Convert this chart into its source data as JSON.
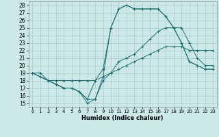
{
  "background_color": "#cce8e8",
  "grid_color": "#aacccc",
  "line_color": "#1a7070",
  "xlabel": "Humidex (Indice chaleur)",
  "xlim": [
    -0.5,
    23.5
  ],
  "ylim": [
    14.5,
    28.5
  ],
  "yticks": [
    15,
    16,
    17,
    18,
    19,
    20,
    21,
    22,
    23,
    24,
    25,
    26,
    27,
    28
  ],
  "xticks": [
    0,
    1,
    2,
    3,
    4,
    5,
    6,
    7,
    8,
    9,
    10,
    11,
    12,
    13,
    14,
    15,
    16,
    17,
    18,
    19,
    20,
    21,
    22,
    23
  ],
  "line1_x": [
    0,
    1,
    2,
    3,
    4,
    5,
    6,
    7,
    8,
    9,
    10,
    11,
    12,
    13,
    14,
    15,
    16,
    17,
    18,
    19,
    20,
    21,
    22,
    23
  ],
  "line1_y": [
    19.0,
    19.0,
    18.0,
    18.0,
    18.0,
    18.0,
    18.0,
    18.0,
    18.0,
    18.5,
    19.0,
    19.5,
    20.0,
    20.5,
    21.0,
    21.5,
    22.0,
    22.5,
    22.5,
    22.5,
    22.0,
    22.0,
    22.0,
    22.0
  ],
  "line2_x": [
    0,
    2,
    3,
    4,
    5,
    6,
    7,
    8,
    9,
    10,
    11,
    12,
    13,
    14,
    15,
    16,
    17,
    18,
    19,
    20,
    21,
    22,
    23
  ],
  "line2_y": [
    19.0,
    18.0,
    17.5,
    17.0,
    17.0,
    16.5,
    15.5,
    15.5,
    18.0,
    19.0,
    20.5,
    21.0,
    21.5,
    22.5,
    23.5,
    24.5,
    25.0,
    25.0,
    25.0,
    23.0,
    21.0,
    20.0,
    20.0
  ],
  "line3_x": [
    0,
    2,
    3,
    4,
    5,
    6,
    7,
    8,
    9,
    10,
    11,
    12,
    13,
    14,
    15,
    16,
    17,
    18,
    19,
    20,
    21,
    22,
    23
  ],
  "line3_y": [
    19.0,
    18.0,
    17.5,
    17.0,
    17.0,
    16.5,
    15.0,
    15.5,
    18.5,
    25.0,
    27.5,
    28.0,
    27.5,
    27.5,
    27.5,
    27.5,
    26.5,
    25.0,
    23.0,
    20.5,
    20.0,
    19.5,
    19.5
  ],
  "line4_x": [
    0,
    1,
    2,
    3,
    4,
    5,
    6,
    7,
    8,
    9,
    10,
    11,
    12,
    13,
    14,
    15,
    16,
    17,
    18,
    19,
    20,
    21,
    22,
    23
  ],
  "line4_y": [
    19.0,
    18.5,
    18.0,
    17.5,
    17.0,
    17.0,
    16.5,
    15.5,
    18.0,
    19.5,
    25.0,
    27.5,
    28.0,
    27.5,
    27.5,
    27.5,
    27.5,
    26.5,
    25.0,
    23.0,
    20.5,
    20.0,
    19.5,
    19.5
  ]
}
